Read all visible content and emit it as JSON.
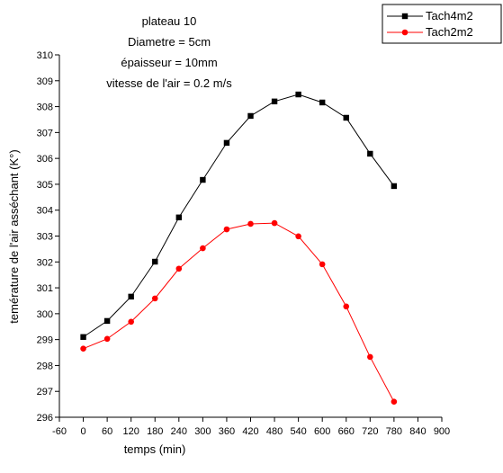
{
  "chart_data": {
    "type": "line",
    "annotations": [
      "plateau 10",
      "Diametre = 5cm",
      "épaisseur = 10mm",
      "vitesse de l'air = 0.2 m/s"
    ],
    "x_label": "temps (min)",
    "y_label": "temérature de l'air asséchant (K°)",
    "x": [
      0,
      60,
      120,
      180,
      240,
      300,
      360,
      420,
      480,
      540,
      600,
      660,
      720,
      780
    ],
    "series": [
      {
        "name": "Tach4m2",
        "color": "#000000",
        "marker": "square",
        "values": [
          299.1,
          299.72,
          300.66,
          302.01,
          303.72,
          305.17,
          306.6,
          307.64,
          308.2,
          308.47,
          308.16,
          307.57,
          306.18,
          304.93
        ]
      },
      {
        "name": "Tach2m2",
        "color": "#ff0000",
        "marker": "circle",
        "values": [
          298.65,
          299.03,
          299.69,
          300.59,
          301.74,
          302.53,
          303.26,
          303.47,
          303.5,
          302.99,
          301.91,
          300.28,
          298.33,
          296.6
        ]
      }
    ],
    "xlim": [
      -60,
      900
    ],
    "xticks": [
      -60,
      0,
      60,
      120,
      180,
      240,
      300,
      360,
      420,
      480,
      540,
      600,
      660,
      720,
      780,
      840,
      900
    ],
    "ylim": [
      296,
      310
    ],
    "yticks": [
      296,
      297,
      298,
      299,
      300,
      301,
      302,
      303,
      304,
      305,
      306,
      307,
      308,
      309,
      310
    ],
    "legend": "top-right"
  }
}
